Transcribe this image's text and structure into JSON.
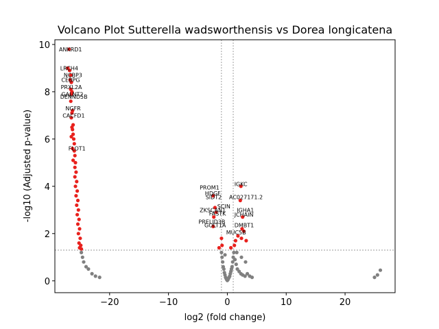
{
  "chart_data": {
    "type": "scatter",
    "title": "Volcano Plot Sutterella wadsworthensis vs Dorea longicatena",
    "xlabel": "log2 (fold change)",
    "ylabel": "-log10 (Adjusted p-value)",
    "xlim": [
      -29.3,
      28.5
    ],
    "ylim": [
      -0.5,
      10.2
    ],
    "x_ticks": [
      -20,
      -10,
      0,
      10,
      20
    ],
    "y_ticks": [
      0,
      2,
      4,
      6,
      8,
      10
    ],
    "thresholds": {
      "fold_change": [
        -1,
        1
      ],
      "neg_log10_p": 1.3
    },
    "grid": false,
    "colors": {
      "significant": "#e8211d",
      "nonsignificant": "#808080",
      "threshold_line": "#888888"
    },
    "series": [
      {
        "name": "significant",
        "points": [
          [
            -26.9,
            9.8
          ],
          [
            -27.1,
            9.0
          ],
          [
            -26.8,
            8.9
          ],
          [
            -26.6,
            8.7
          ],
          [
            -26.7,
            8.5
          ],
          [
            -26.5,
            8.4
          ],
          [
            -26.6,
            8.1
          ],
          [
            -26.4,
            8.0
          ],
          [
            -26.5,
            7.9
          ],
          [
            -26.6,
            7.6
          ],
          [
            -26.3,
            7.2
          ],
          [
            -26.4,
            7.1
          ],
          [
            -26.5,
            6.9
          ],
          [
            -26.2,
            6.6
          ],
          [
            -26.4,
            6.5
          ],
          [
            -26.3,
            6.4
          ],
          [
            -26.2,
            6.2
          ],
          [
            -26.5,
            6.1
          ],
          [
            -26.1,
            6.0
          ],
          [
            -26.0,
            5.8
          ],
          [
            -26.3,
            5.6
          ],
          [
            -26.0,
            5.5
          ],
          [
            -25.9,
            5.3
          ],
          [
            -26.2,
            5.1
          ],
          [
            -25.8,
            5.0
          ],
          [
            -25.9,
            4.8
          ],
          [
            -25.7,
            4.6
          ],
          [
            -25.9,
            4.4
          ],
          [
            -25.6,
            4.2
          ],
          [
            -25.8,
            4.0
          ],
          [
            -25.5,
            3.8
          ],
          [
            -25.7,
            3.6
          ],
          [
            -25.4,
            3.4
          ],
          [
            -25.6,
            3.2
          ],
          [
            -25.3,
            3.0
          ],
          [
            -25.5,
            2.8
          ],
          [
            -25.2,
            2.6
          ],
          [
            -25.4,
            2.4
          ],
          [
            -25.1,
            2.2
          ],
          [
            -25.3,
            2.0
          ],
          [
            -25.0,
            1.8
          ],
          [
            -25.2,
            1.6
          ],
          [
            -24.9,
            1.5
          ],
          [
            -25.1,
            1.4
          ],
          [
            -24.8,
            1.35
          ],
          [
            2.3,
            4.0
          ],
          [
            -2.4,
            3.6
          ],
          [
            -2.1,
            3.1
          ],
          [
            2.2,
            3.4
          ],
          [
            -1.9,
            2.9
          ],
          [
            -2.3,
            2.7
          ],
          [
            2.6,
            2.7
          ],
          [
            2.5,
            2.2
          ],
          [
            2.8,
            2.1
          ],
          [
            -2.4,
            2.3
          ],
          [
            1.8,
            1.9
          ],
          [
            2.4,
            1.8
          ],
          [
            3.2,
            1.7
          ],
          [
            -1.0,
            1.8
          ],
          [
            1.4,
            1.7
          ],
          [
            -0.9,
            1.5
          ],
          [
            1.2,
            1.5
          ],
          [
            -1.4,
            1.4
          ],
          [
            0.6,
            1.4
          ]
        ]
      },
      {
        "name": "nonsignificant",
        "points": [
          [
            -24.8,
            1.2
          ],
          [
            -24.6,
            1.0
          ],
          [
            -24.4,
            0.8
          ],
          [
            -24.0,
            0.6
          ],
          [
            -23.6,
            0.5
          ],
          [
            -23.0,
            0.3
          ],
          [
            -22.4,
            0.2
          ],
          [
            -21.7,
            0.15
          ],
          [
            -1.0,
            1.2
          ],
          [
            -0.9,
            1.0
          ],
          [
            -0.8,
            0.8
          ],
          [
            -0.7,
            0.6
          ],
          [
            -0.6,
            0.5
          ],
          [
            -0.5,
            0.35
          ],
          [
            -0.4,
            0.25
          ],
          [
            -0.3,
            0.15
          ],
          [
            -0.2,
            0.1
          ],
          [
            -0.1,
            0.05
          ],
          [
            0.0,
            0.02
          ],
          [
            0.1,
            0.05
          ],
          [
            0.2,
            0.1
          ],
          [
            0.3,
            0.15
          ],
          [
            0.4,
            0.2
          ],
          [
            0.5,
            0.3
          ],
          [
            0.6,
            0.4
          ],
          [
            0.7,
            0.5
          ],
          [
            0.8,
            0.6
          ],
          [
            0.9,
            0.8
          ],
          [
            1.0,
            1.0
          ],
          [
            1.1,
            1.2
          ],
          [
            1.3,
            0.9
          ],
          [
            1.5,
            0.7
          ],
          [
            1.7,
            0.5
          ],
          [
            2.0,
            0.4
          ],
          [
            2.3,
            0.3
          ],
          [
            2.6,
            0.25
          ],
          [
            3.0,
            0.2
          ],
          [
            3.4,
            0.3
          ],
          [
            3.8,
            0.2
          ],
          [
            4.2,
            0.15
          ],
          [
            3.1,
            0.8
          ],
          [
            2.4,
            1.0
          ],
          [
            1.6,
            1.2
          ],
          [
            -0.4,
            1.1
          ],
          [
            25.0,
            0.15
          ],
          [
            25.5,
            0.25
          ],
          [
            26.0,
            0.45
          ]
        ]
      }
    ],
    "gene_labels": [
      {
        "text": "ANKRD1",
        "x": -28.6,
        "y": 9.8
      },
      {
        "text": "LRCH4",
        "x": -28.4,
        "y": 9.0
      },
      {
        "text": "NCBP3",
        "x": -27.8,
        "y": 8.7
      },
      {
        "text": "CEBPG",
        "x": -28.2,
        "y": 8.5
      },
      {
        "text": "PRXL2A",
        "x": -28.3,
        "y": 8.2
      },
      {
        "text": "GALNT2",
        "x": -28.2,
        "y": 7.9
      },
      {
        "text": "DENND5B",
        "x": -28.4,
        "y": 7.8
      },
      {
        "text": "NGFR",
        "x": -27.5,
        "y": 7.3
      },
      {
        "text": "CACFD1",
        "x": -28.0,
        "y": 7.0
      },
      {
        "text": "FLOT1",
        "x": -27.0,
        "y": 5.6
      },
      {
        "text": "PROM1",
        "x": -4.7,
        "y": 3.95
      },
      {
        "text": "HDGF",
        "x": -3.8,
        "y": 3.7
      },
      {
        "text": "SIDT2",
        "x": -3.7,
        "y": 3.55
      },
      {
        "text": "AC027171.2",
        "x": 0.3,
        "y": 3.55
      },
      {
        "text": "IGKC",
        "x": 1.2,
        "y": 4.1
      },
      {
        "text": "SCIN",
        "x": -1.7,
        "y": 3.15
      },
      {
        "text": "ZKSCAN1",
        "x": -4.7,
        "y": 3.0
      },
      {
        "text": "FASTK",
        "x": -3.1,
        "y": 2.85
      },
      {
        "text": "IGHA1",
        "x": 1.6,
        "y": 3.0
      },
      {
        "text": "JCHAIN",
        "x": 1.2,
        "y": 2.8
      },
      {
        "text": "PRELID3B",
        "x": -4.9,
        "y": 2.5
      },
      {
        "text": "GOLT1A",
        "x": -3.9,
        "y": 2.35
      },
      {
        "text": "DMBT1",
        "x": 1.2,
        "y": 2.35
      },
      {
        "text": "MUC5B",
        "x": -0.2,
        "y": 2.05
      }
    ]
  }
}
